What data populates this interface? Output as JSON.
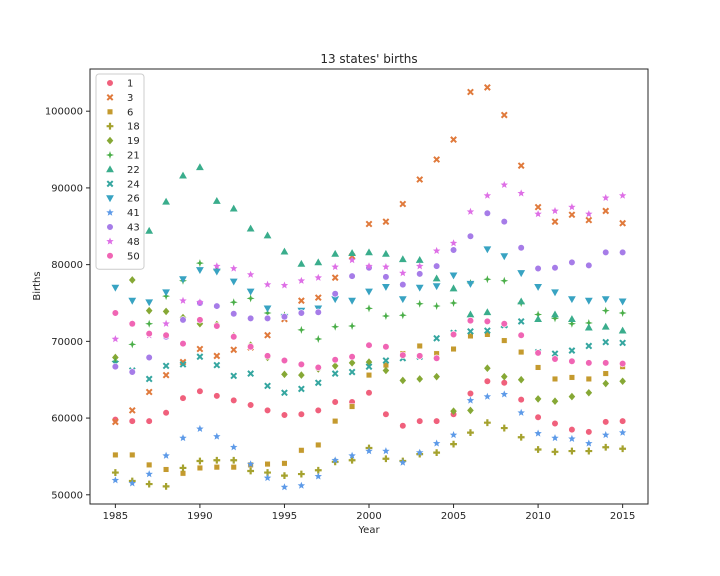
{
  "chart_data": {
    "type": "scatter",
    "title": "13 states' births",
    "xlabel": "Year",
    "ylabel": "Births",
    "xlim": [
      1983.5,
      2016.5
    ],
    "ylim": [
      48800,
      105500
    ],
    "xticks": [
      1985,
      1990,
      1995,
      2000,
      2005,
      2010,
      2015
    ],
    "xtick_labels": [
      "1985",
      "1990",
      "1995",
      "2000",
      "2005",
      "2010",
      "2015"
    ],
    "yticks": [
      50000,
      60000,
      70000,
      80000,
      90000,
      100000
    ],
    "ytick_labels": [
      "50000",
      "60000",
      "70000",
      "80000",
      "90000",
      "100000"
    ],
    "grid": false,
    "legend_position": "upper-left",
    "x": [
      1985,
      1986,
      1987,
      1988,
      1989,
      1990,
      1991,
      1992,
      1993,
      1994,
      1995,
      1996,
      1997,
      1998,
      1999,
      2000,
      2001,
      2002,
      2003,
      2004,
      2005,
      2006,
      2007,
      2008,
      2009,
      2010,
      2011,
      2012,
      2013,
      2014,
      2015
    ],
    "series": [
      {
        "name": "1",
        "marker": "circle",
        "color": "#f0607c",
        "values": [
          59800,
          59600,
          59600,
          60700,
          62600,
          63500,
          62900,
          62300,
          61700,
          61000,
          60400,
          60500,
          61000,
          62100,
          62100,
          63300,
          60500,
          59000,
          59600,
          59600,
          60500,
          63200,
          64800,
          64600,
          62400,
          60100,
          59300,
          58500,
          58200,
          59500,
          59600
        ]
      },
      {
        "name": "3",
        "marker": "x",
        "color": "#e07a3c",
        "values": [
          59500,
          61000,
          63400,
          65600,
          67300,
          69000,
          68100,
          68900,
          69200,
          70800,
          72900,
          75300,
          75700,
          78300,
          81100,
          85300,
          85600,
          87900,
          91100,
          93700,
          96300,
          102500,
          103100,
          99500,
          92900,
          87500,
          85600,
          86500,
          85800,
          87000,
          85400
        ]
      },
      {
        "name": "6",
        "marker": "square",
        "color": "#c49a2e",
        "values": [
          55200,
          55200,
          53900,
          53300,
          52800,
          53500,
          53600,
          53600,
          53900,
          54000,
          54100,
          55800,
          56500,
          59600,
          61500,
          65600,
          66900,
          68400,
          69400,
          68400,
          69000,
          70700,
          70900,
          70100,
          68600,
          66600,
          65100,
          65300,
          65100,
          65800,
          66700
        ]
      },
      {
        "name": "18",
        "marker": "plus",
        "color": "#a5a22e",
        "values": [
          52900,
          51800,
          51400,
          51100,
          53500,
          54400,
          54500,
          54500,
          53100,
          52900,
          52500,
          52700,
          53200,
          54300,
          54500,
          56100,
          54700,
          54400,
          55300,
          55500,
          56600,
          58100,
          59400,
          58700,
          57500,
          55900,
          55600,
          55700,
          55700,
          56200,
          56000
        ]
      },
      {
        "name": "19",
        "marker": "diamond",
        "color": "#86a835",
        "values": [
          67900,
          78000,
          74000,
          73900,
          73100,
          72300,
          72200,
          70700,
          69500,
          67900,
          65700,
          65600,
          66400,
          66800,
          67200,
          67300,
          66200,
          64900,
          65100,
          65400,
          60900,
          61000,
          66500,
          65400,
          65000,
          62500,
          62200,
          62800,
          63300,
          64500,
          64800
        ]
      },
      {
        "name": "21",
        "marker": "star4",
        "color": "#4aae48",
        "values": [
          67400,
          69600,
          72300,
          75900,
          77900,
          80200,
          79300,
          75100,
          75600,
          73700,
          73400,
          71500,
          70300,
          71900,
          72000,
          74300,
          73300,
          73400,
          74900,
          74600,
          75000,
          77600,
          78100,
          77900,
          75000,
          73500,
          73000,
          72300,
          72400,
          74000,
          73700
        ]
      },
      {
        "name": "22",
        "marker": "triangle",
        "color": "#3aad8c",
        "values": [
          null,
          null,
          84400,
          88200,
          91600,
          92700,
          88300,
          87300,
          84700,
          83800,
          81700,
          80100,
          80300,
          81400,
          81500,
          81600,
          81400,
          80700,
          80600,
          78200,
          76900,
          73500,
          73800,
          72200,
          75200,
          72900,
          73500,
          72900,
          71800,
          71900,
          71400
        ]
      },
      {
        "name": "24",
        "marker": "x",
        "color": "#35a6a0",
        "values": [
          67100,
          66200,
          65100,
          66800,
          67000,
          68000,
          66900,
          65500,
          65800,
          64200,
          63300,
          63800,
          64600,
          65800,
          66000,
          66700,
          67500,
          67800,
          68000,
          70400,
          71100,
          71300,
          71400,
          72100,
          72600,
          68600,
          68400,
          68800,
          69400,
          69900,
          69800
        ]
      },
      {
        "name": "26",
        "marker": "triangle-down",
        "color": "#38a3c2",
        "values": [
          77000,
          75300,
          75100,
          76400,
          78100,
          79300,
          79100,
          77800,
          76500,
          74300,
          73200,
          74000,
          74300,
          75500,
          75300,
          76500,
          77100,
          75500,
          77000,
          77200,
          78600,
          77500,
          82000,
          81100,
          78900,
          77100,
          76400,
          75500,
          75300,
          75500,
          75200
        ]
      },
      {
        "name": "41",
        "marker": "star",
        "color": "#5d9ae8",
        "values": [
          51900,
          51500,
          52700,
          55100,
          57400,
          58600,
          57600,
          56200,
          54000,
          52200,
          51000,
          51200,
          52400,
          54500,
          55100,
          55700,
          55700,
          54200,
          55500,
          56700,
          57800,
          62300,
          62800,
          63100,
          60700,
          58000,
          57400,
          57300,
          56700,
          57800,
          58100
        ]
      },
      {
        "name": "43",
        "marker": "circle",
        "color": "#a67ce8",
        "values": [
          66700,
          66000,
          67900,
          70600,
          72800,
          75000,
          74600,
          73600,
          73000,
          73000,
          73200,
          73700,
          73800,
          76200,
          78500,
          79600,
          78400,
          77400,
          78800,
          79800,
          81900,
          83700,
          86700,
          85600,
          82200,
          79500,
          79600,
          80300,
          79900,
          81600,
          81600
        ]
      },
      {
        "name": "48",
        "marker": "star",
        "color": "#de6fe6",
        "values": [
          70300,
          72300,
          70800,
          72300,
          75300,
          75100,
          79800,
          79500,
          78700,
          77400,
          77300,
          77900,
          78300,
          79700,
          80600,
          79800,
          79700,
          78900,
          79800,
          81800,
          82800,
          86900,
          89000,
          90400,
          89300,
          86600,
          87000,
          87500,
          86600,
          88700,
          89000
        ]
      },
      {
        "name": "50",
        "marker": "circle",
        "color": "#f065b4",
        "values": [
          73700,
          72300,
          71000,
          70800,
          69700,
          72800,
          72000,
          70600,
          69300,
          68100,
          67500,
          67000,
          66600,
          67600,
          68000,
          69500,
          69300,
          68200,
          68100,
          67800,
          70900,
          72700,
          72600,
          72300,
          70800,
          68500,
          67700,
          67400,
          67200,
          67200,
          67100
        ]
      }
    ]
  }
}
